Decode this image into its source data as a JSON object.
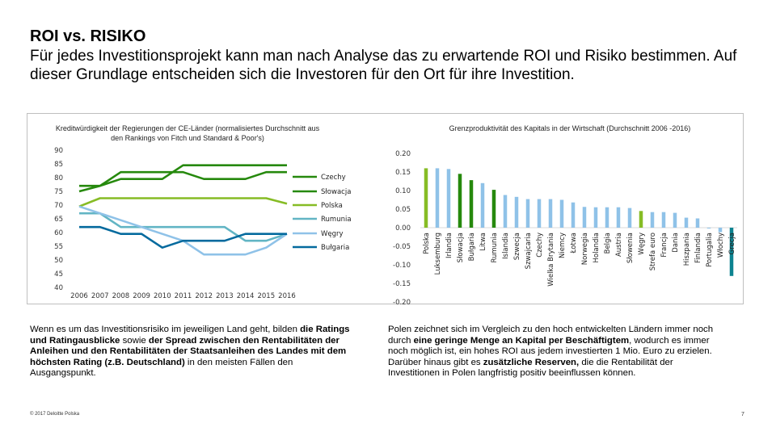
{
  "page": {
    "title": "ROI vs. RISIKO",
    "subtitle": "Für jedes Investitionsprojekt kann man nach Analyse das zu erwartende ROI und Risiko bestimmen. Auf dieser Grundlage entscheiden sich die Investoren für den Ort für ihre Investition.",
    "left_text": {
      "p1": "Wenn es um das Investitionsrisiko im jeweiligen Land geht, bilden ",
      "b1": "die Ratings und Ratingausblicke",
      "p2": " sowie ",
      "b2": "der Spread zwischen den Rentabilitäten der Anleihen und den Rentabilitäten der Staatsanleihen des Landes mit dem höchsten Rating (z.B. Deutschland)",
      "p3": " in den meisten Fällen den Ausgangspunkt."
    },
    "right_text": {
      "p1": "Polen zeichnet sich im Vergleich zu den hoch entwickelten Ländern immer noch durch ",
      "b1": "eine geringe Menge an Kapital per Beschäftigtem",
      "p2": ", wodurch es immer noch möglich ist, ein hohes ROI aus jedem investierten 1 Mio. Euro zu erzielen. Darüber hinaus gibt es ",
      "b2": "zusätzliche Reserven,",
      "p3": " die die Rentabilität der Investitionen in Polen langfristig positiv beeinflussen können."
    },
    "copyright": "© 2017 Deloitte Polska",
    "page_number": "7"
  },
  "colors": {
    "dark_green": "#26890d",
    "light_green": "#86bc25",
    "teal": "#0d8390",
    "light_blue": "#8fc2e8",
    "dark_blue": "#046a9e",
    "light_teal": "#62b5c4",
    "grey": "#a6a6a6"
  },
  "chart_data": [
    {
      "type": "line",
      "title": "Kreditwürdigkeit der Regierungen der CE-Länder (normalisiertes Durchschnitt aus den Rankings von Fitch und Standard & Poor's)",
      "x": [
        "2006",
        "2007",
        "2008",
        "2009",
        "2010",
        "2011",
        "2012",
        "2013",
        "2014",
        "2015",
        "2016"
      ],
      "ylim": [
        40,
        90
      ],
      "yticks": [
        "90",
        "85",
        "80",
        "75",
        "70",
        "65",
        "60",
        "55",
        "50",
        "45",
        "40"
      ],
      "series": [
        {
          "name": "Czechy",
          "color": "#26890d",
          "values": [
            75,
            77,
            79.5,
            79.5,
            79.5,
            84.5,
            84.5,
            84.5,
            84.5,
            84.5,
            84.5
          ]
        },
        {
          "name": "Słowacja",
          "color": "#26890d",
          "values": [
            77,
            77,
            82,
            82,
            82,
            82,
            79.5,
            79.5,
            79.5,
            82,
            82
          ]
        },
        {
          "name": "Polska",
          "color": "#86bc25",
          "values": [
            69.5,
            72.5,
            72.5,
            72.5,
            72.5,
            72.5,
            72.5,
            72.5,
            72.5,
            72.5,
            70.5
          ]
        },
        {
          "name": "Rumunia",
          "color": "#62b5c4",
          "values": [
            67,
            67,
            62,
            62,
            62,
            62,
            62,
            62,
            57,
            57,
            59.5
          ]
        },
        {
          "name": "Węgry",
          "color": "#8fc2e8",
          "values": [
            69.5,
            67,
            64.5,
            62,
            59.5,
            57,
            52,
            52,
            52,
            54.5,
            59.5
          ]
        },
        {
          "name": "Bułgaria",
          "color": "#046a9e",
          "values": [
            62,
            62,
            59.5,
            59.5,
            54.5,
            57,
            57,
            57,
            59.5,
            59.5,
            59.5
          ]
        }
      ]
    },
    {
      "type": "bar",
      "title": "Grenzproduktivität des Kapitals in der Wirtschaft (Durchschnitt 2006 -2016)",
      "ylim": [
        -0.2,
        0.2
      ],
      "yticks": [
        "0.20",
        "0.15",
        "0.10",
        "0.05",
        "0.00",
        "-0.05",
        "-0.10",
        "-0.15",
        "-0.20"
      ],
      "categories": [
        "Polska",
        "Luksemburg",
        "Irlandia",
        "Słowacja",
        "Bułgaria",
        "Litwa",
        "Rumunia",
        "Islandia",
        "Szwecja",
        "Szwajcaria",
        "Czechy",
        "Wielka Brytania",
        "Niemcy",
        "Łotwa",
        "Norwegia",
        "Holandia",
        "Belgia",
        "Austria",
        "Słowenia",
        "Węgry",
        "Strefa euro",
        "Francja",
        "Dania",
        "Hiszpania",
        "Finlandia",
        "Portugalia",
        "Włochy",
        "Grecja"
      ],
      "values": [
        0.16,
        0.16,
        0.158,
        0.145,
        0.128,
        0.12,
        0.102,
        0.088,
        0.083,
        0.077,
        0.077,
        0.077,
        0.075,
        0.068,
        0.056,
        0.055,
        0.055,
        0.055,
        0.053,
        0.045,
        0.042,
        0.042,
        0.04,
        0.027,
        0.025,
        0.0,
        -0.012,
        -0.13
      ],
      "highlight": [
        "Polska",
        "Słowacja",
        "Bułgaria",
        "Rumunia",
        "Węgry"
      ]
    }
  ]
}
